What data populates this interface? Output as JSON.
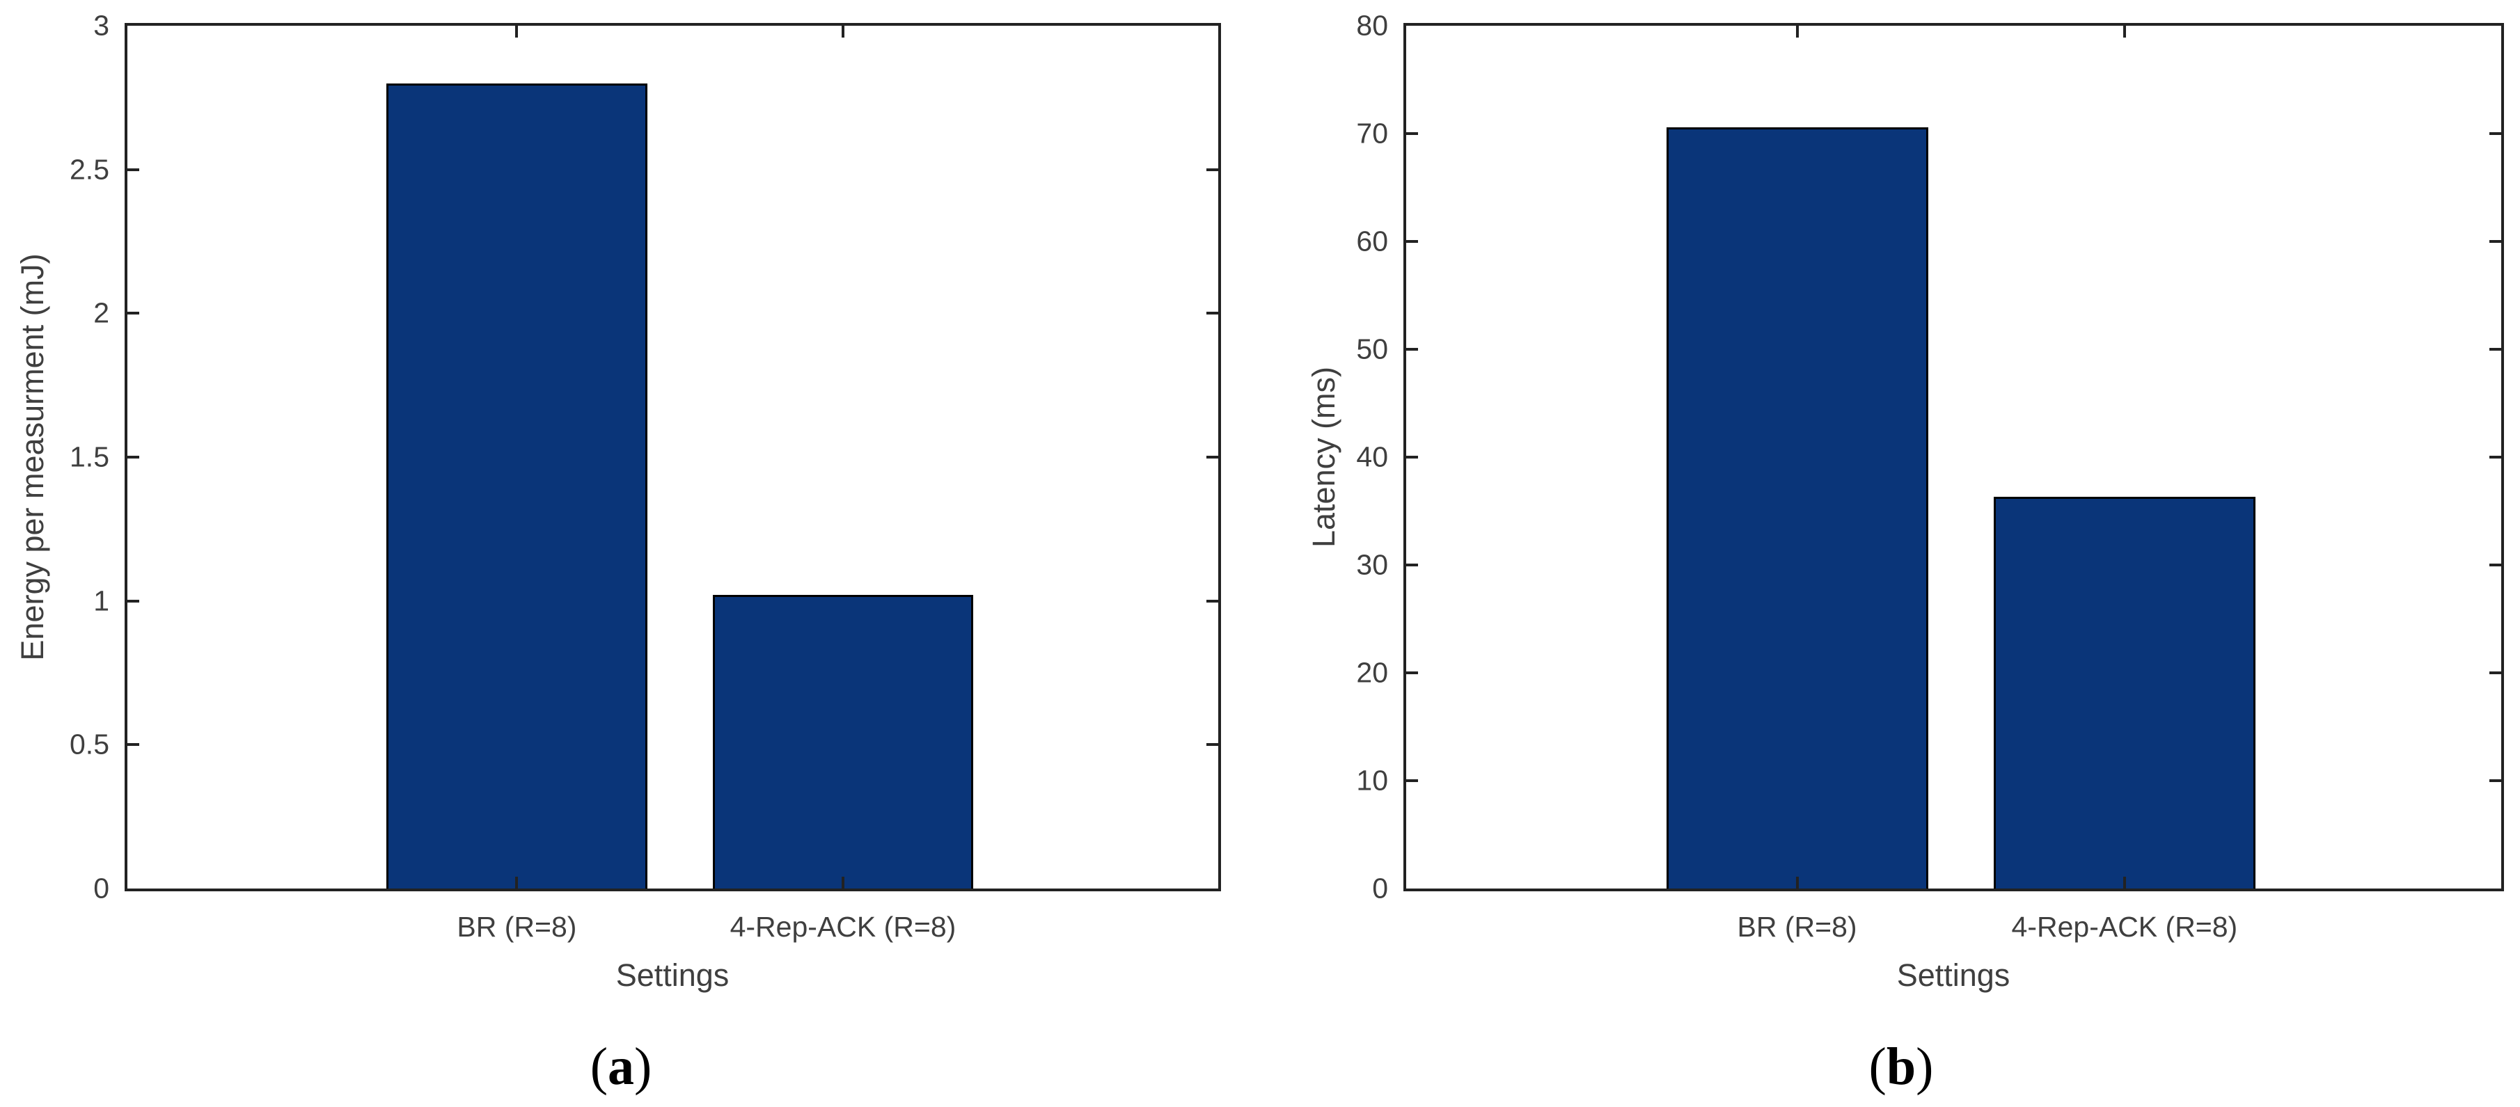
{
  "figure": {
    "background": "#ffffff",
    "bar_fill": "#0a3579",
    "bar_edge": "#000000",
    "axis_color": "#222222",
    "label_color": "#3f3f3f"
  },
  "chart_data": [
    {
      "type": "bar",
      "panel": "a",
      "title": "",
      "categories": [
        "BR (R=8)",
        "4-Rep-ACK (R=8)"
      ],
      "values": [
        2.8,
        1.02
      ],
      "xlabel": "Settings",
      "ylabel": "Energy per measurment (mJ)",
      "ylim": [
        0,
        3
      ],
      "yticks": [
        0,
        0.5,
        1,
        1.5,
        2,
        2.5,
        3
      ],
      "ytick_labels": [
        "0",
        "0.5",
        "1",
        "1.5",
        "2",
        "2.5",
        "3"
      ],
      "grid": false,
      "legend_position": "none"
    },
    {
      "type": "bar",
      "panel": "b",
      "title": "",
      "categories": [
        "BR (R=8)",
        "4-Rep-ACK (R=8)"
      ],
      "values": [
        70.6,
        36.3
      ],
      "xlabel": "Settings",
      "ylabel": "Latency (ms)",
      "ylim": [
        0,
        80
      ],
      "yticks": [
        0,
        10,
        20,
        30,
        40,
        50,
        60,
        70,
        80
      ],
      "ytick_labels": [
        "0",
        "10",
        "20",
        "30",
        "40",
        "50",
        "60",
        "70",
        "80"
      ],
      "grid": false,
      "legend_position": "none"
    }
  ],
  "captions": [
    {
      "open": "(",
      "letter": "a",
      "close": ")"
    },
    {
      "open": "(",
      "letter": "b",
      "close": ")"
    }
  ]
}
